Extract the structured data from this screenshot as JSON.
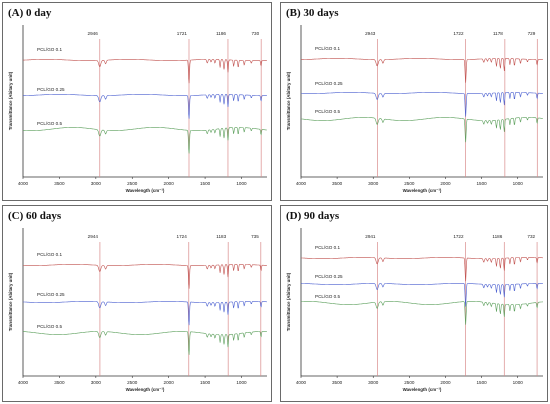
{
  "colors": {
    "red": "#c0504d",
    "blue": "#4a5fd0",
    "green": "#5a9e5a",
    "peak_line": "#d98b8b"
  },
  "chart_data": [
    {
      "type": "line",
      "title": "(A) 0 day",
      "xlabel": "Wavelength (cm⁻¹)",
      "ylabel": "Transmittance (Abitary unit)",
      "x_ticks": [
        "4000",
        "3500",
        "3000",
        "2500",
        "2000",
        "1500",
        "1000"
      ],
      "xlim": [
        4000,
        650
      ],
      "x_reversed": true,
      "peaks": [
        2946,
        1721,
        1186,
        730
      ],
      "series": [
        {
          "name": "PCL/GO 0.1",
          "color": "#c0504d"
        },
        {
          "name": "PCL/GO 0.25",
          "color": "#4a5fd0"
        },
        {
          "name": "PCL/GO 0.5",
          "color": "#5a9e5a"
        }
      ]
    },
    {
      "type": "line",
      "title": "(B) 30 days",
      "xlabel": "Wavelength (cm⁻¹)",
      "ylabel": "Transmittance (Abitary unit)",
      "x_ticks": [
        "4000",
        "3500",
        "3000",
        "2500",
        "2000",
        "1500",
        "1000"
      ],
      "xlim": [
        4000,
        650
      ],
      "x_reversed": true,
      "peaks": [
        2943,
        1722,
        1178,
        729
      ],
      "series": [
        {
          "name": "PCL/GO 0.1",
          "color": "#c0504d"
        },
        {
          "name": "PCL/GO 0.25",
          "color": "#4a5fd0"
        },
        {
          "name": "PCL/GO 0.5",
          "color": "#5a9e5a"
        }
      ]
    },
    {
      "type": "line",
      "title": "(C) 60 days",
      "xlabel": "Wavelength (cm⁻¹)",
      "ylabel": "Transmittance (Abitary unit)",
      "x_ticks": [
        "4000",
        "3500",
        "3000",
        "2500",
        "2000",
        "1500",
        "1000"
      ],
      "xlim": [
        4000,
        650
      ],
      "x_reversed": true,
      "peaks": [
        2944,
        1724,
        1183,
        735
      ],
      "series": [
        {
          "name": "PCL/GO 0.1",
          "color": "#c0504d"
        },
        {
          "name": "PCL/GO 0.25",
          "color": "#4a5fd0"
        },
        {
          "name": "PCL/GO 0.5",
          "color": "#5a9e5a"
        }
      ]
    },
    {
      "type": "line",
      "title": "(D) 90 days",
      "xlabel": "Wavelength (cm⁻¹)",
      "ylabel": "Transmittance (Abitary unit)",
      "x_ticks": [
        "4000",
        "3500",
        "3000",
        "2500",
        "2000",
        "1500",
        "1000"
      ],
      "xlim": [
        4000,
        650
      ],
      "x_reversed": true,
      "peaks": [
        2941,
        1722,
        1186,
        732
      ],
      "series": [
        {
          "name": "PCL/GO 0.1",
          "color": "#c0504d"
        },
        {
          "name": "PCL/GO 0.25",
          "color": "#4a5fd0"
        },
        {
          "name": "PCL/GO 0.5",
          "color": "#5a9e5a"
        }
      ]
    }
  ]
}
